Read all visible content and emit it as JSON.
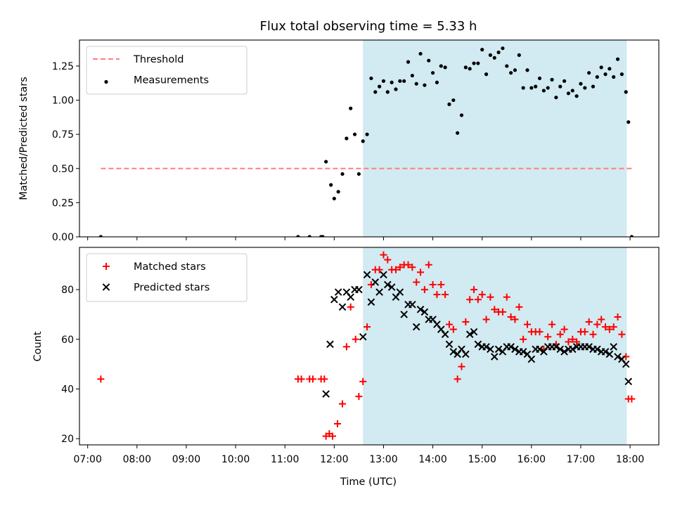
{
  "title": "Flux total observing time = 5.33 h",
  "xlabel": "Time (UTC)",
  "x_ticks": [
    "07:00",
    "08:00",
    "09:00",
    "10:00",
    "11:00",
    "12:00",
    "13:00",
    "14:00",
    "15:00",
    "16:00",
    "17:00",
    "18:00"
  ],
  "colors": {
    "threshold": "#ff7f7f",
    "measurement": "#000000",
    "matched": "#ff0000",
    "predicted": "#000000",
    "observing_window": "#add8e6"
  },
  "chart_data": [
    {
      "type": "scatter",
      "ylabel": "Matched/Predicted stars",
      "xlim": [
        "06:50",
        "18:35"
      ],
      "ylim": [
        0,
        1.44
      ],
      "y_ticks": [
        "0.00",
        "0.25",
        "0.50",
        "0.75",
        "1.00",
        "1.25"
      ],
      "observing_window": [
        "12:35",
        "17:56"
      ],
      "legend_position": "top-left",
      "threshold": {
        "name": "Threshold",
        "y": 0.5,
        "x_range": [
          "07:16",
          "18:02"
        ]
      },
      "series": [
        {
          "name": "Measurements",
          "points": [
            [
              "07:16",
              0.0
            ],
            [
              "11:16",
              0.0
            ],
            [
              "11:30",
              0.0
            ],
            [
              "11:44",
              0.0
            ],
            [
              "11:46",
              0.0
            ],
            [
              "11:50",
              0.55
            ],
            [
              "11:56",
              0.38
            ],
            [
              "12:00",
              0.28
            ],
            [
              "12:05",
              0.33
            ],
            [
              "12:10",
              0.46
            ],
            [
              "12:15",
              0.72
            ],
            [
              "12:20",
              0.94
            ],
            [
              "12:25",
              0.75
            ],
            [
              "12:30",
              0.46
            ],
            [
              "12:35",
              0.7
            ],
            [
              "12:40",
              0.75
            ],
            [
              "12:45",
              1.16
            ],
            [
              "12:50",
              1.06
            ],
            [
              "12:55",
              1.1
            ],
            [
              "13:00",
              1.14
            ],
            [
              "13:05",
              1.06
            ],
            [
              "13:10",
              1.13
            ],
            [
              "13:15",
              1.08
            ],
            [
              "13:20",
              1.14
            ],
            [
              "13:25",
              1.14
            ],
            [
              "13:30",
              1.28
            ],
            [
              "13:35",
              1.18
            ],
            [
              "13:40",
              1.12
            ],
            [
              "13:45",
              1.34
            ],
            [
              "13:50",
              1.11
            ],
            [
              "13:55",
              1.29
            ],
            [
              "14:00",
              1.2
            ],
            [
              "14:05",
              1.13
            ],
            [
              "14:10",
              1.25
            ],
            [
              "14:15",
              1.24
            ],
            [
              "14:20",
              0.97
            ],
            [
              "14:25",
              1.0
            ],
            [
              "14:30",
              0.76
            ],
            [
              "14:35",
              0.89
            ],
            [
              "14:40",
              1.24
            ],
            [
              "14:45",
              1.23
            ],
            [
              "14:50",
              1.27
            ],
            [
              "14:55",
              1.27
            ],
            [
              "15:00",
              1.37
            ],
            [
              "15:05",
              1.19
            ],
            [
              "15:10",
              1.33
            ],
            [
              "15:15",
              1.31
            ],
            [
              "15:20",
              1.35
            ],
            [
              "15:25",
              1.38
            ],
            [
              "15:30",
              1.25
            ],
            [
              "15:35",
              1.2
            ],
            [
              "15:40",
              1.22
            ],
            [
              "15:45",
              1.33
            ],
            [
              "15:50",
              1.09
            ],
            [
              "15:55",
              1.22
            ],
            [
              "16:00",
              1.09
            ],
            [
              "16:05",
              1.1
            ],
            [
              "16:10",
              1.16
            ],
            [
              "16:15",
              1.07
            ],
            [
              "16:20",
              1.09
            ],
            [
              "16:25",
              1.15
            ],
            [
              "16:30",
              1.02
            ],
            [
              "16:35",
              1.1
            ],
            [
              "16:40",
              1.14
            ],
            [
              "16:45",
              1.05
            ],
            [
              "16:50",
              1.07
            ],
            [
              "16:55",
              1.03
            ],
            [
              "17:00",
              1.12
            ],
            [
              "17:05",
              1.09
            ],
            [
              "17:10",
              1.2
            ],
            [
              "17:15",
              1.1
            ],
            [
              "17:20",
              1.17
            ],
            [
              "17:25",
              1.24
            ],
            [
              "17:30",
              1.19
            ],
            [
              "17:35",
              1.23
            ],
            [
              "17:40",
              1.17
            ],
            [
              "17:45",
              1.3
            ],
            [
              "17:50",
              1.19
            ],
            [
              "17:55",
              1.06
            ],
            [
              "17:58",
              0.84
            ],
            [
              "18:02",
              0.0
            ]
          ]
        }
      ]
    },
    {
      "type": "scatter",
      "ylabel": "Count",
      "xlim": [
        "06:50",
        "18:35"
      ],
      "ylim": [
        17.5,
        97
      ],
      "y_ticks": [
        "20",
        "40",
        "60",
        "80"
      ],
      "observing_window": [
        "12:35",
        "17:56"
      ],
      "legend_position": "top-left",
      "series": [
        {
          "name": "Matched stars",
          "marker": "plus",
          "points": [
            [
              "07:16",
              44
            ],
            [
              "11:16",
              44
            ],
            [
              "11:20",
              44
            ],
            [
              "11:30",
              44
            ],
            [
              "11:34",
              44
            ],
            [
              "11:44",
              44
            ],
            [
              "11:48",
              44
            ],
            [
              "11:50",
              21
            ],
            [
              "11:54",
              22
            ],
            [
              "11:58",
              21
            ],
            [
              "12:04",
              26
            ],
            [
              "12:10",
              34
            ],
            [
              "12:15",
              57
            ],
            [
              "12:20",
              73
            ],
            [
              "12:26",
              60
            ],
            [
              "12:30",
              37
            ],
            [
              "12:35",
              43
            ],
            [
              "12:40",
              65
            ],
            [
              "12:45",
              82
            ],
            [
              "12:50",
              88
            ],
            [
              "12:55",
              88
            ],
            [
              "13:00",
              94
            ],
            [
              "13:05",
              92
            ],
            [
              "13:10",
              88
            ],
            [
              "13:15",
              88
            ],
            [
              "13:20",
              89
            ],
            [
              "13:25",
              90
            ],
            [
              "13:30",
              90
            ],
            [
              "13:35",
              89
            ],
            [
              "13:40",
              83
            ],
            [
              "13:45",
              87
            ],
            [
              "13:50",
              80
            ],
            [
              "13:55",
              90
            ],
            [
              "14:00",
              82
            ],
            [
              "14:05",
              78
            ],
            [
              "14:10",
              82
            ],
            [
              "14:15",
              78
            ],
            [
              "14:20",
              66
            ],
            [
              "14:25",
              64
            ],
            [
              "14:30",
              44
            ],
            [
              "14:35",
              49
            ],
            [
              "14:40",
              67
            ],
            [
              "14:45",
              76
            ],
            [
              "14:50",
              80
            ],
            [
              "14:55",
              76
            ],
            [
              "15:00",
              78
            ],
            [
              "15:05",
              68
            ],
            [
              "15:10",
              77
            ],
            [
              "15:15",
              72
            ],
            [
              "15:20",
              71
            ],
            [
              "15:25",
              71
            ],
            [
              "15:30",
              77
            ],
            [
              "15:35",
              69
            ],
            [
              "15:40",
              68
            ],
            [
              "15:45",
              73
            ],
            [
              "15:50",
              60
            ],
            [
              "15:55",
              66
            ],
            [
              "16:00",
              63
            ],
            [
              "16:05",
              63
            ],
            [
              "16:10",
              63
            ],
            [
              "16:15",
              56
            ],
            [
              "16:20",
              61
            ],
            [
              "16:25",
              66
            ],
            [
              "16:30",
              58
            ],
            [
              "16:35",
              62
            ],
            [
              "16:40",
              64
            ],
            [
              "16:45",
              59
            ],
            [
              "16:50",
              60
            ],
            [
              "16:55",
              59
            ],
            [
              "17:00",
              63
            ],
            [
              "17:05",
              63
            ],
            [
              "17:10",
              67
            ],
            [
              "17:15",
              62
            ],
            [
              "17:20",
              66
            ],
            [
              "17:25",
              68
            ],
            [
              "17:30",
              65
            ],
            [
              "17:35",
              64
            ],
            [
              "17:40",
              65
            ],
            [
              "17:45",
              69
            ],
            [
              "17:50",
              62
            ],
            [
              "17:55",
              53
            ],
            [
              "17:58",
              36
            ],
            [
              "18:02",
              36
            ]
          ]
        },
        {
          "name": "Predicted stars",
          "marker": "x",
          "points": [
            [
              "11:50",
              38
            ],
            [
              "11:55",
              58
            ],
            [
              "12:00",
              76
            ],
            [
              "12:05",
              79
            ],
            [
              "12:10",
              73
            ],
            [
              "12:15",
              79
            ],
            [
              "12:20",
              77
            ],
            [
              "12:25",
              80
            ],
            [
              "12:30",
              80
            ],
            [
              "12:35",
              61
            ],
            [
              "12:40",
              86
            ],
            [
              "12:45",
              75
            ],
            [
              "12:50",
              83
            ],
            [
              "12:55",
              79
            ],
            [
              "13:00",
              86
            ],
            [
              "13:05",
              82
            ],
            [
              "13:10",
              81
            ],
            [
              "13:15",
              77
            ],
            [
              "13:20",
              79
            ],
            [
              "13:25",
              70
            ],
            [
              "13:30",
              74
            ],
            [
              "13:35",
              74
            ],
            [
              "13:40",
              65
            ],
            [
              "13:45",
              72
            ],
            [
              "13:50",
              71
            ],
            [
              "13:55",
              68
            ],
            [
              "14:00",
              68
            ],
            [
              "14:05",
              66
            ],
            [
              "14:10",
              64
            ],
            [
              "14:15",
              62
            ],
            [
              "14:20",
              58
            ],
            [
              "14:25",
              55
            ],
            [
              "14:30",
              54
            ],
            [
              "14:35",
              56
            ],
            [
              "14:40",
              54
            ],
            [
              "14:45",
              62
            ],
            [
              "14:50",
              63
            ],
            [
              "14:55",
              58
            ],
            [
              "15:00",
              57
            ],
            [
              "15:05",
              57
            ],
            [
              "15:10",
              56
            ],
            [
              "15:15",
              53
            ],
            [
              "15:20",
              56
            ],
            [
              "15:25",
              55
            ],
            [
              "15:30",
              57
            ],
            [
              "15:35",
              57
            ],
            [
              "15:40",
              56
            ],
            [
              "15:45",
              55
            ],
            [
              "15:50",
              55
            ],
            [
              "15:55",
              54
            ],
            [
              "16:00",
              52
            ],
            [
              "16:05",
              56
            ],
            [
              "16:10",
              56
            ],
            [
              "16:15",
              55
            ],
            [
              "16:20",
              57
            ],
            [
              "16:25",
              57
            ],
            [
              "16:30",
              57
            ],
            [
              "16:35",
              56
            ],
            [
              "16:40",
              55
            ],
            [
              "16:45",
              56
            ],
            [
              "16:50",
              56
            ],
            [
              "16:55",
              57
            ],
            [
              "17:00",
              57
            ],
            [
              "17:05",
              57
            ],
            [
              "17:10",
              57
            ],
            [
              "17:15",
              56
            ],
            [
              "17:20",
              56
            ],
            [
              "17:25",
              55
            ],
            [
              "17:30",
              55
            ],
            [
              "17:35",
              54
            ],
            [
              "17:40",
              57
            ],
            [
              "17:45",
              53
            ],
            [
              "17:50",
              52
            ],
            [
              "17:55",
              50
            ],
            [
              "17:58",
              43
            ]
          ]
        }
      ]
    }
  ]
}
